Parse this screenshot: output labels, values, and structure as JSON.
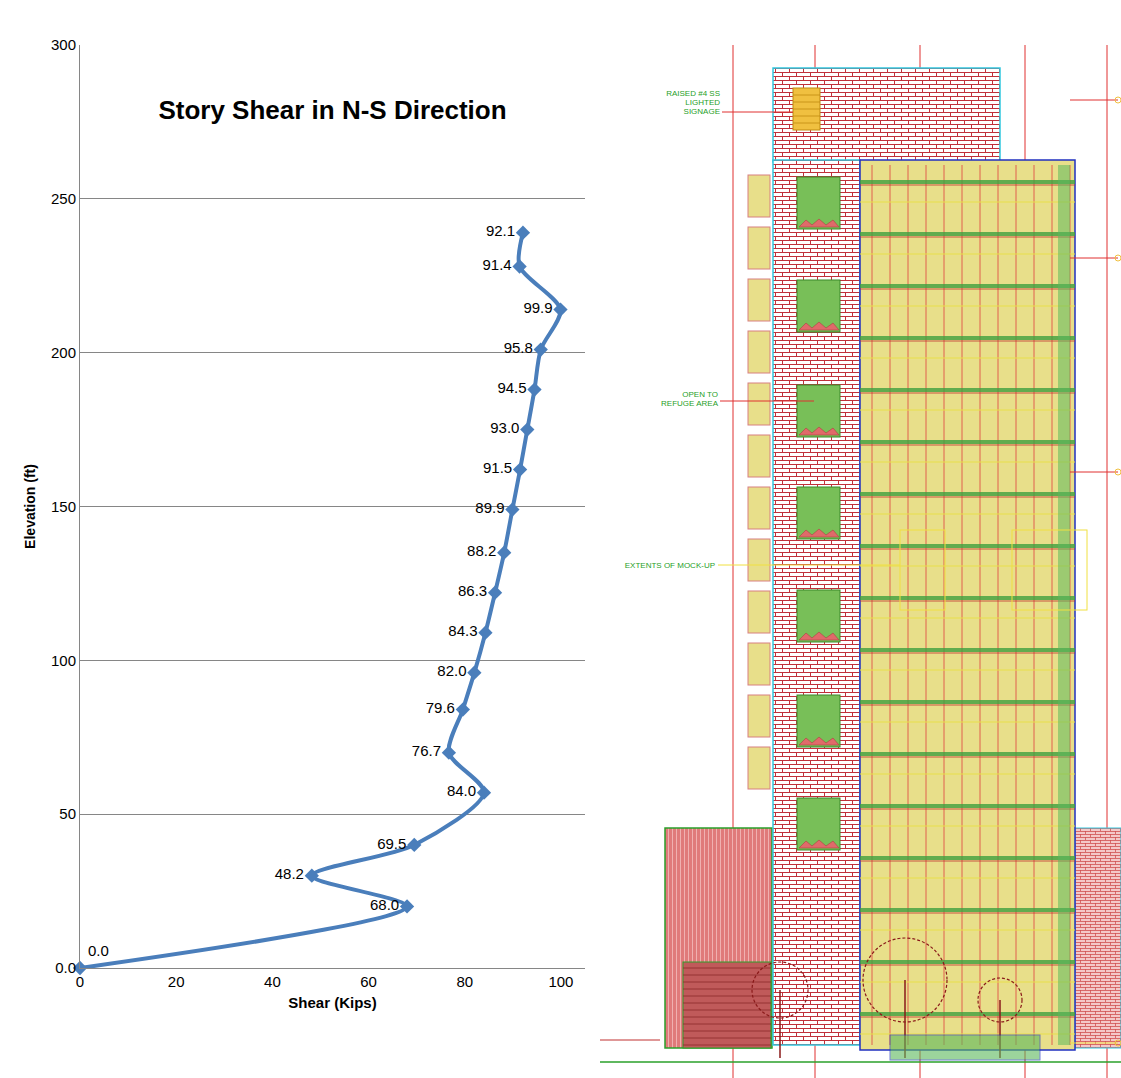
{
  "chart_data": {
    "type": "line",
    "title": "Story Shear in N-S Direction",
    "x_label": "Shear (Kips)",
    "y_label": "Elevation (ft)",
    "orientation": "horizontal",
    "y": [
      0,
      20,
      30,
      40,
      57,
      70,
      84,
      96,
      109,
      122,
      135,
      149,
      162,
      175,
      188,
      201,
      214,
      228,
      239
    ],
    "values": [
      0,
      68,
      48.2,
      69.5,
      84,
      76.7,
      79.6,
      82,
      84.3,
      86.3,
      88.2,
      89.9,
      91.5,
      93,
      94.5,
      95.8,
      99.9,
      91.4,
      92.1
    ],
    "value_labels": [
      "0.0",
      "68.0",
      "48.2",
      "69.5",
      "84.0",
      "76.7",
      "79.6",
      "82.0",
      "84.3",
      "86.3",
      "88.2",
      "89.9",
      "91.5",
      "93.0",
      "94.5",
      "95.8",
      "99.9",
      "91.4",
      "92.1"
    ],
    "data_labels": true,
    "color": "#4a7ebb",
    "marker": "diamond",
    "line_style": "smooth",
    "xlim": [
      0,
      105
    ],
    "xticks": [
      0,
      20,
      40,
      60,
      80,
      100
    ],
    "ylim": [
      0,
      300
    ],
    "yticks": [
      {
        "value": 0,
        "label": "0.0"
      },
      50,
      100,
      150,
      200,
      250,
      300
    ],
    "grid": true
  },
  "elevation_drawing": {
    "labels": [
      {
        "lines": [
          "RAISED #4 SS",
          "LIGHTED",
          "SIGNAGE"
        ]
      },
      {
        "lines": [
          "OPEN TO",
          "REFUGE AREA"
        ]
      },
      {
        "lines": [
          "EXTENTS OF MOCK-UP"
        ]
      }
    ]
  }
}
